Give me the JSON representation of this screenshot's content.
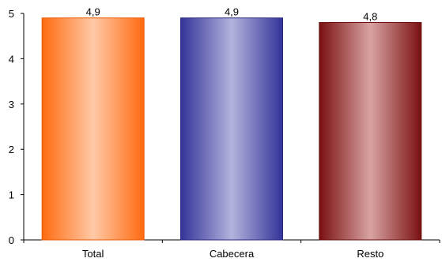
{
  "chart_data": {
    "type": "bar",
    "categories": [
      "Total",
      "Cabecera",
      "Resto"
    ],
    "values": [
      4.9,
      4.9,
      4.8
    ],
    "data_labels": [
      "4,9",
      "4,9",
      "4,8"
    ],
    "yticks": [
      0,
      1,
      2,
      3,
      4,
      5
    ],
    "ylim": [
      0,
      5
    ],
    "title": "",
    "xlabel": "",
    "ylabel": "",
    "grid": false,
    "bar_colors": [
      {
        "edge": "#ff6a10",
        "center": "#ffc9a6",
        "stroke": "#e85a00"
      },
      {
        "edge": "#333399",
        "center": "#b3b3dd",
        "stroke": "#2a2a80"
      },
      {
        "edge": "#7a1010",
        "center": "#d9a3a3",
        "stroke": "#661010"
      }
    ]
  }
}
